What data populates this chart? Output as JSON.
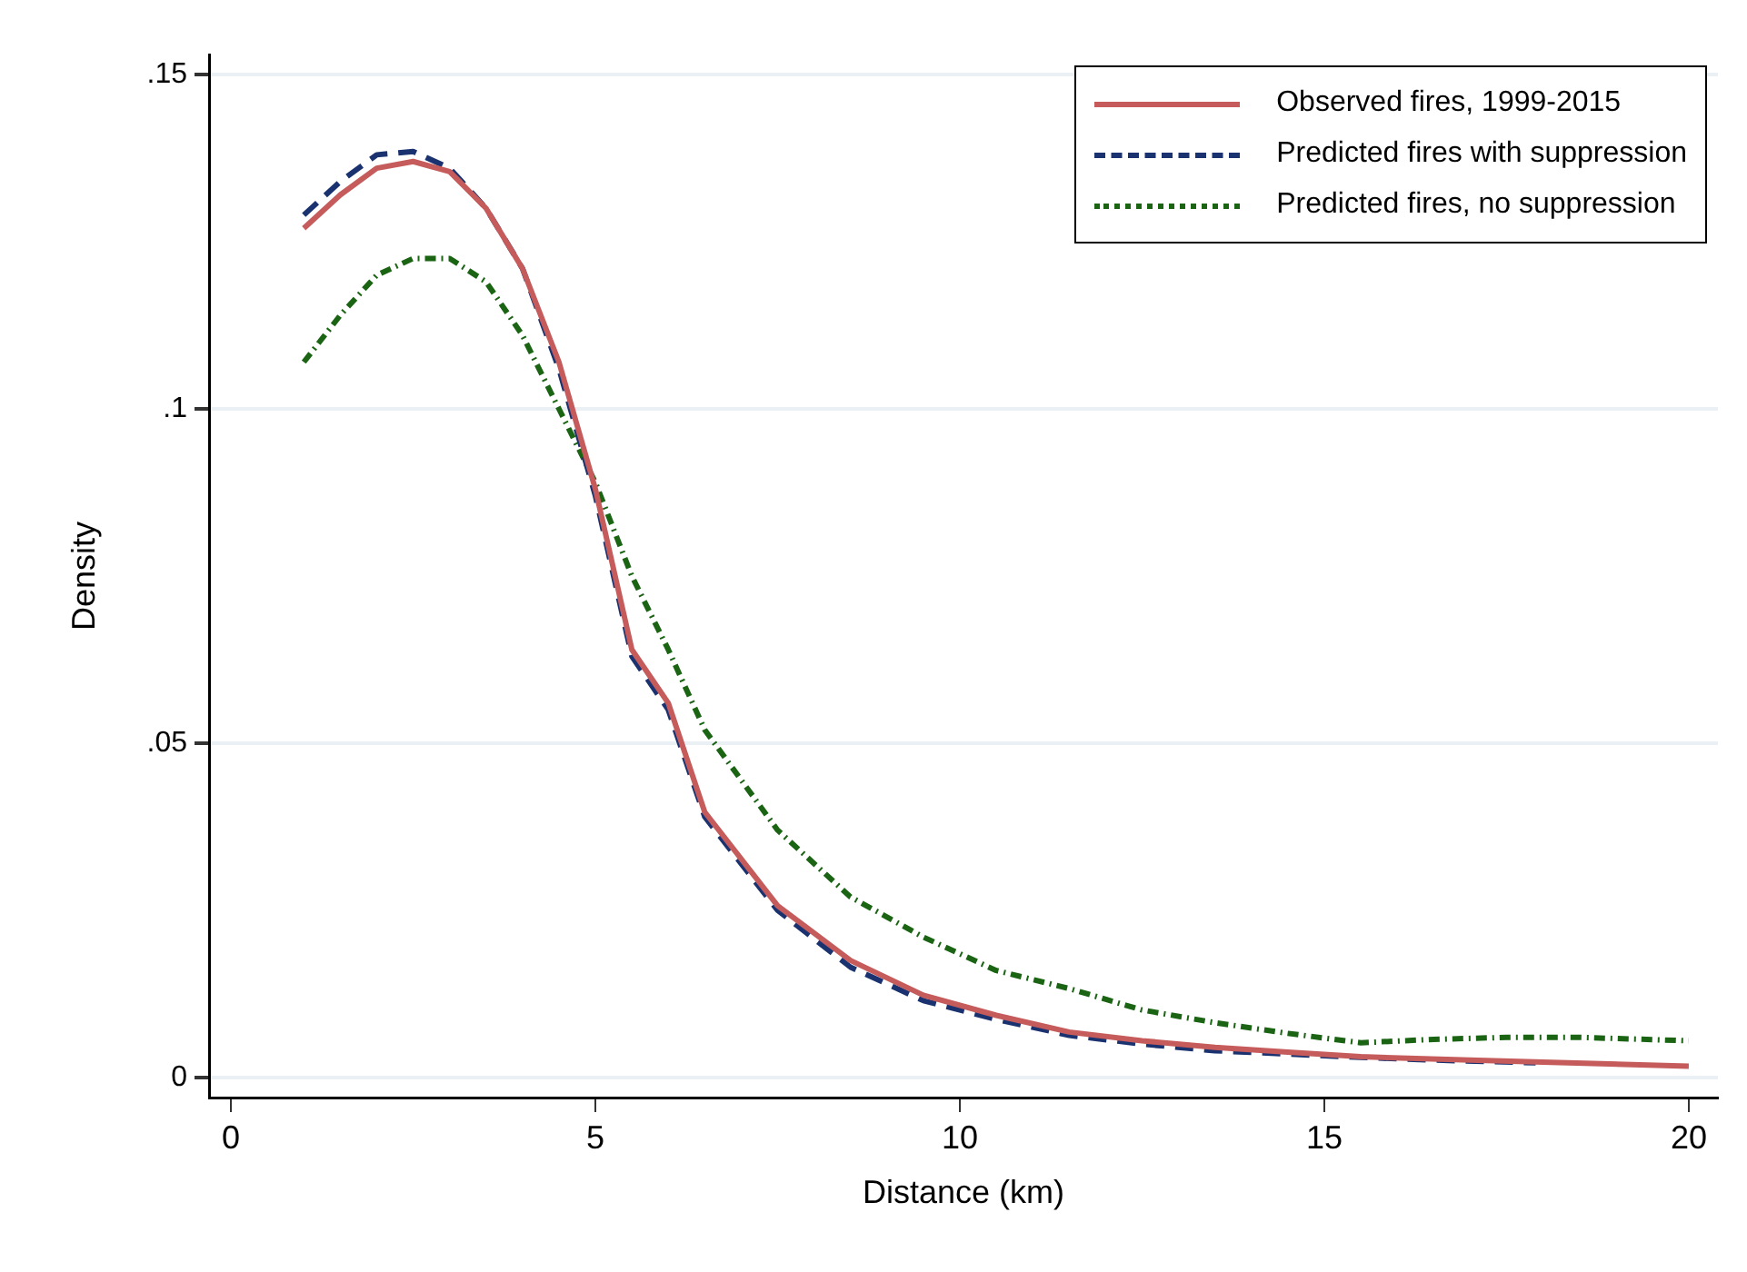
{
  "chart_data": {
    "type": "line",
    "xlabel": "Distance (km)",
    "ylabel": "Density",
    "xlim": [
      -0.3,
      20.4
    ],
    "xticks": [
      0,
      5,
      10,
      15,
      20
    ],
    "ylim": [
      -0.003,
      0.153
    ],
    "yticks": [
      0,
      {
        "value": 0.05,
        "label": ".05"
      },
      {
        "value": 0.1,
        "label": ".1"
      },
      {
        "value": 0.15,
        "label": ".15"
      }
    ],
    "grid": "y",
    "legend": "top right",
    "marker": "none",
    "series": [
      {
        "name": "Observed fires, 1999-2015",
        "color": "#c65b5b",
        "line_style": "solid",
        "x": [
          1,
          1.5,
          2,
          2.5,
          3,
          3.5,
          4,
          4.5,
          5,
          5.5,
          6,
          6.5,
          7.5,
          8.5,
          9.5,
          10.5,
          11.5,
          12.5,
          13.5,
          14.5,
          15.5,
          17,
          18,
          20
        ],
        "values": [
          0.127,
          0.132,
          0.136,
          0.137,
          0.1355,
          0.13,
          0.121,
          0.107,
          0.088,
          0.064,
          0.056,
          0.0397,
          0.0257,
          0.0175,
          0.0123,
          0.0093,
          0.0068,
          0.0055,
          0.0045,
          0.0038,
          0.0031,
          0.0026,
          0.0023,
          0.0017
        ]
      },
      {
        "name": "Predicted fires with suppression",
        "color": "#1a3370",
        "line_style": "dashed",
        "x": [
          1,
          1.5,
          2,
          2.5,
          3,
          3.5,
          4,
          4.5,
          5,
          5.5,
          6,
          6.5,
          7.5,
          8.5,
          9.5,
          10.5,
          11.5,
          12.5,
          13.5,
          14.5,
          15.5,
          16.5,
          17.9
        ],
        "values": [
          0.129,
          0.134,
          0.138,
          0.1385,
          0.136,
          0.13,
          0.121,
          0.106,
          0.087,
          0.063,
          0.055,
          0.039,
          0.025,
          0.0165,
          0.0115,
          0.0087,
          0.0063,
          0.005,
          0.004,
          0.0035,
          0.003,
          0.0026,
          0.0022
        ]
      },
      {
        "name": "Predicted fires, no suppression",
        "color": "#1a6414",
        "line_style": "dotted",
        "x": [
          1,
          1.5,
          2,
          2.5,
          3,
          3.5,
          4,
          4.5,
          5,
          5.5,
          6,
          6.5,
          7.5,
          8.5,
          9.5,
          10.5,
          11.5,
          12.5,
          13.5,
          14.5,
          15.5,
          16.5,
          17.5,
          18.5,
          20
        ],
        "values": [
          0.107,
          0.114,
          0.12,
          0.1225,
          0.1225,
          0.119,
          0.111,
          0.1,
          0.089,
          0.075,
          0.064,
          0.052,
          0.037,
          0.027,
          0.021,
          0.016,
          0.0133,
          0.0101,
          0.0082,
          0.0066,
          0.0052,
          0.0057,
          0.006,
          0.006,
          0.0055
        ]
      }
    ]
  }
}
